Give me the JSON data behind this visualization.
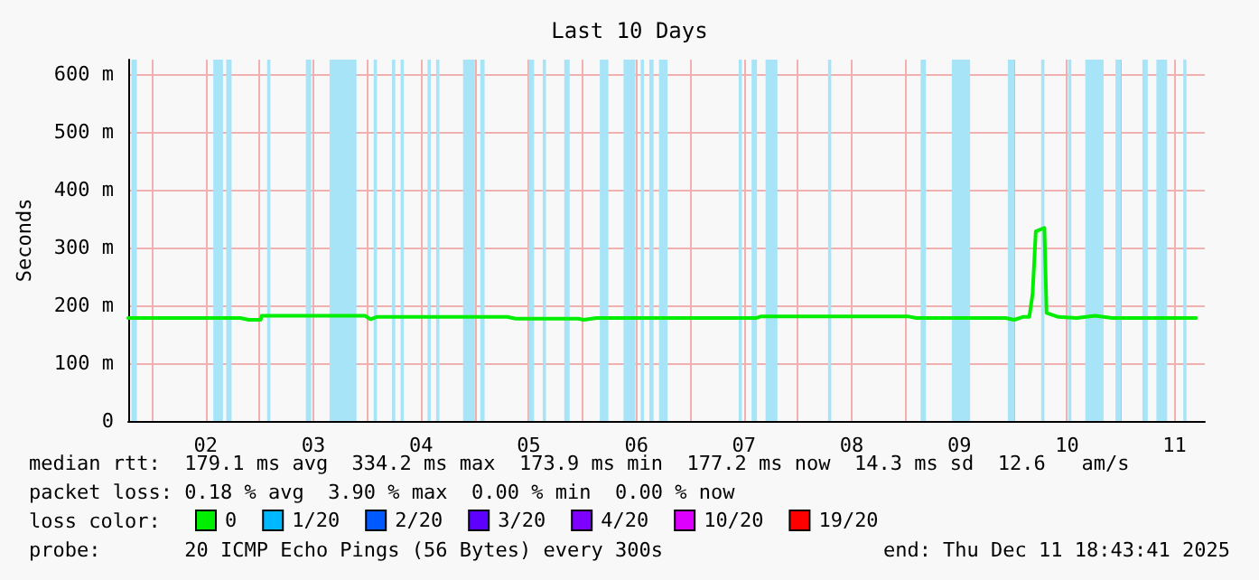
{
  "chart_data": {
    "type": "line",
    "title": "Last 10 Days",
    "ylabel": "Seconds",
    "x": [
      1.78,
      2.82,
      2.9,
      3.01,
      3.02,
      3.98,
      4.03,
      4.09,
      5.3,
      5.38,
      5.96,
      6.01,
      6.13,
      7.61,
      7.66,
      9.02,
      9.1,
      9.93,
      10.01,
      10.09,
      10.15,
      10.18,
      10.21,
      10.29,
      10.31,
      10.42,
      10.59,
      10.76,
      10.92,
      11.7
    ],
    "series": [
      {
        "name": "0",
        "color": "#00ee00",
        "values": [
          178,
          178,
          175,
          175,
          182,
          182,
          176,
          180,
          180,
          177,
          177,
          175,
          178,
          178,
          181,
          181,
          178,
          178,
          175,
          180,
          180,
          219,
          328,
          334,
          187,
          180,
          178,
          182,
          178,
          178
        ]
      },
      {
        "name": "1/20",
        "color": "#00b8ff",
        "values": [
          null,
          null,
          null,
          null,
          null,
          null,
          null,
          null,
          null,
          null,
          null,
          null,
          null,
          null,
          null,
          null,
          null,
          null,
          null,
          null,
          null,
          null,
          null,
          null,
          null,
          null,
          null,
          null,
          null,
          null
        ]
      },
      {
        "name": "2/20",
        "color": "#0059ff",
        "values": [
          null,
          null,
          null,
          null,
          null,
          null,
          null,
          null,
          null,
          null,
          null,
          null,
          null,
          null,
          null,
          null,
          null,
          null,
          null,
          null,
          null,
          null,
          null,
          null,
          null,
          null,
          null,
          null,
          null,
          null
        ]
      },
      {
        "name": "3/20",
        "color": "#5e00ff",
        "values": [
          null,
          null,
          null,
          null,
          null,
          null,
          null,
          null,
          null,
          null,
          null,
          null,
          null,
          null,
          null,
          null,
          null,
          null,
          null,
          null,
          null,
          null,
          null,
          null,
          null,
          null,
          null,
          null,
          null,
          null
        ]
      },
      {
        "name": "4/20",
        "color": "#7e00ff",
        "values": [
          null,
          null,
          null,
          null,
          null,
          null,
          null,
          null,
          null,
          null,
          null,
          null,
          null,
          null,
          null,
          null,
          null,
          null,
          null,
          null,
          null,
          null,
          null,
          null,
          null,
          null,
          null,
          null,
          null,
          null
        ]
      },
      {
        "name": "10/20",
        "color": "#dd00ff",
        "values": [
          null,
          null,
          null,
          null,
          null,
          null,
          null,
          null,
          null,
          null,
          null,
          null,
          null,
          null,
          null,
          null,
          null,
          null,
          null,
          null,
          null,
          null,
          null,
          null,
          null,
          null,
          null,
          null,
          null,
          null
        ]
      },
      {
        "name": "19/20",
        "color": "#ff0000",
        "values": [
          null,
          null,
          null,
          null,
          null,
          null,
          null,
          null,
          null,
          null,
          null,
          null,
          null,
          null,
          null,
          null,
          null,
          null,
          null,
          null,
          null,
          null,
          null,
          null,
          null,
          null,
          null,
          null,
          null,
          null
        ]
      }
    ],
    "xlim": [
      1.78,
      11.78
    ],
    "xticks": [
      {
        "value": 2,
        "label": null
      },
      {
        "value": 2.5,
        "label": "02"
      },
      {
        "value": 3,
        "label": null
      },
      {
        "value": 3.5,
        "label": "03"
      },
      {
        "value": 4,
        "label": null
      },
      {
        "value": 4.5,
        "label": "04"
      },
      {
        "value": 5,
        "label": null
      },
      {
        "value": 5.5,
        "label": "05"
      },
      {
        "value": 6,
        "label": null
      },
      {
        "value": 6.5,
        "label": "06"
      },
      {
        "value": 7,
        "label": null
      },
      {
        "value": 7.5,
        "label": "07"
      },
      {
        "value": 8,
        "label": null
      },
      {
        "value": 8.5,
        "label": "08"
      },
      {
        "value": 9,
        "label": null
      },
      {
        "value": 9.5,
        "label": "09"
      },
      {
        "value": 10,
        "label": null
      },
      {
        "value": 10.5,
        "label": "10"
      },
      {
        "value": 11,
        "label": null
      },
      {
        "value": 11.5,
        "label": "11"
      }
    ],
    "ylim": [
      0,
      625
    ],
    "yticks": [
      0,
      {
        "value": 100,
        "label": "100 m"
      },
      {
        "value": 200,
        "label": "200 m"
      },
      {
        "value": 300,
        "label": "300 m"
      },
      {
        "value": 400,
        "label": "400 m"
      },
      {
        "value": 500,
        "label": "500 m"
      },
      {
        "value": 600,
        "label": "600 m"
      }
    ],
    "grid": true,
    "legend": "bottom left",
    "marker": "none",
    "line_style": "solid",
    "bands": [
      {
        "axis": "x",
        "from": 1.81,
        "to": 1.86,
        "color": "#a8e4f8"
      },
      {
        "axis": "x",
        "from": 2.57,
        "to": 2.66,
        "color": "#a8e4f8"
      },
      {
        "axis": "x",
        "from": 2.69,
        "to": 2.74,
        "color": "#a8e4f8"
      },
      {
        "axis": "x",
        "from": 3.07,
        "to": 3.1,
        "color": "#a8e4f8"
      },
      {
        "axis": "x",
        "from": 3.43,
        "to": 3.48,
        "color": "#a8e4f8"
      },
      {
        "axis": "x",
        "from": 3.65,
        "to": 3.9,
        "color": "#a8e4f8"
      },
      {
        "axis": "x",
        "from": 4.06,
        "to": 4.09,
        "color": "#a8e4f8"
      },
      {
        "axis": "x",
        "from": 4.23,
        "to": 4.26,
        "color": "#a8e4f8"
      },
      {
        "axis": "x",
        "from": 4.31,
        "to": 4.34,
        "color": "#a8e4f8"
      },
      {
        "axis": "x",
        "from": 4.56,
        "to": 4.59,
        "color": "#a8e4f8"
      },
      {
        "axis": "x",
        "from": 4.64,
        "to": 4.67,
        "color": "#a8e4f8"
      },
      {
        "axis": "x",
        "from": 4.89,
        "to": 5.0,
        "color": "#a8e4f8"
      },
      {
        "axis": "x",
        "from": 5.05,
        "to": 5.09,
        "color": "#a8e4f8"
      },
      {
        "axis": "x",
        "from": 5.5,
        "to": 5.55,
        "color": "#a8e4f8"
      },
      {
        "axis": "x",
        "from": 5.63,
        "to": 5.66,
        "color": "#a8e4f8"
      },
      {
        "axis": "x",
        "from": 5.83,
        "to": 5.88,
        "color": "#a8e4f8"
      },
      {
        "axis": "x",
        "from": 6.16,
        "to": 6.24,
        "color": "#a8e4f8"
      },
      {
        "axis": "x",
        "from": 6.38,
        "to": 6.49,
        "color": "#a8e4f8"
      },
      {
        "axis": "x",
        "from": 6.54,
        "to": 6.57,
        "color": "#a8e4f8"
      },
      {
        "axis": "x",
        "from": 6.62,
        "to": 6.66,
        "color": "#a8e4f8"
      },
      {
        "axis": "x",
        "from": 6.71,
        "to": 6.79,
        "color": "#a8e4f8"
      },
      {
        "axis": "x",
        "from": 7.45,
        "to": 7.48,
        "color": "#a8e4f8"
      },
      {
        "axis": "x",
        "from": 7.57,
        "to": 7.62,
        "color": "#a8e4f8"
      },
      {
        "axis": "x",
        "from": 7.7,
        "to": 7.81,
        "color": "#a8e4f8"
      },
      {
        "axis": "x",
        "from": 8.28,
        "to": 8.31,
        "color": "#a8e4f8"
      },
      {
        "axis": "x",
        "from": 9.14,
        "to": 9.19,
        "color": "#a8e4f8"
      },
      {
        "axis": "x",
        "from": 9.43,
        "to": 9.6,
        "color": "#a8e4f8"
      },
      {
        "axis": "x",
        "from": 9.95,
        "to": 10.01,
        "color": "#a8e4f8"
      },
      {
        "axis": "x",
        "from": 10.26,
        "to": 10.29,
        "color": "#a8e4f8"
      },
      {
        "axis": "x",
        "from": 10.51,
        "to": 10.54,
        "color": "#a8e4f8"
      },
      {
        "axis": "x",
        "from": 10.67,
        "to": 10.84,
        "color": "#a8e4f8"
      },
      {
        "axis": "x",
        "from": 10.95,
        "to": 11.0,
        "color": "#a8e4f8"
      },
      {
        "axis": "x",
        "from": 11.2,
        "to": 11.25,
        "color": "#a8e4f8"
      },
      {
        "axis": "x",
        "from": 11.33,
        "to": 11.43,
        "color": "#a8e4f8"
      },
      {
        "axis": "x",
        "from": 11.58,
        "to": 11.61,
        "color": "#a8e4f8"
      }
    ],
    "annotations": [
      "median rtt:  179.1 ms avg  334.2 ms max  173.9 ms min  177.2 ms now  14.3 ms sd  12.6   am/s",
      "packet loss: 0.18 % avg  3.90 % max  0.00 % min  0.00 % now",
      "loss color:",
      "probe:       20 ICMP Echo Pings (56 Bytes) every 300s",
      "end: Thu Dec 11 18:43:41 2025"
    ]
  }
}
